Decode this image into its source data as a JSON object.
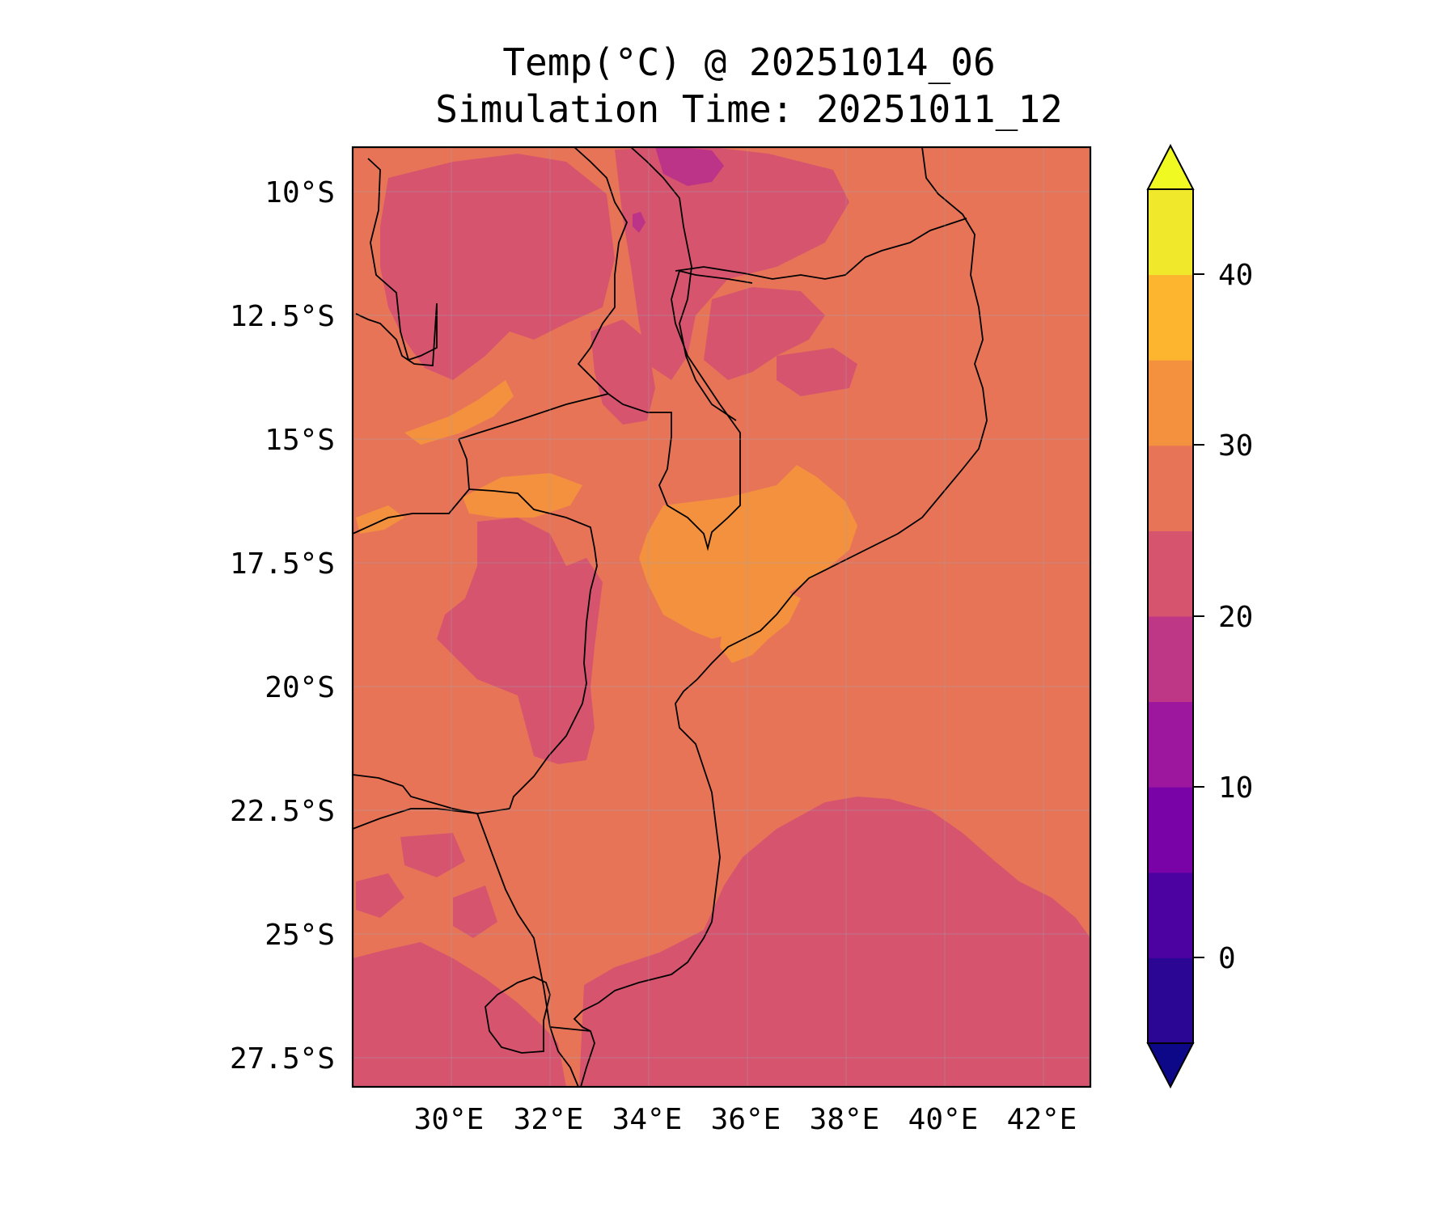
{
  "title": {
    "line1": "Temp(°C) @ 20251014_06",
    "line2": "Simulation Time: 20251011_12"
  },
  "map": {
    "lon_range": [
      28,
      43
    ],
    "lat_range": [
      -28,
      -9
    ],
    "lon_ticks": [
      "30°E",
      "32°E",
      "34°E",
      "36°E",
      "38°E",
      "40°E",
      "42°E"
    ],
    "lat_ticks": [
      "10°S",
      "12.5°S",
      "15°S",
      "17.5°S",
      "20°S",
      "22.5°S",
      "25°S",
      "27.5°S"
    ],
    "colors": {
      "band_25_30": "#e87458",
      "band_20_25": "#d6546e",
      "band_15_20": "#bb3488",
      "band_30_35": "#f3913f"
    }
  },
  "colorbar": {
    "tick_labels": [
      "0",
      "10",
      "20",
      "30",
      "40"
    ],
    "bands": [
      "#0d0887",
      "#2b0594",
      "#4c02a1",
      "#7a03a8",
      "#9c179e",
      "#bd3786",
      "#d6546e",
      "#e87458",
      "#f3913f",
      "#fdb42f",
      "#f0e82b",
      "#f0f921"
    ]
  }
}
